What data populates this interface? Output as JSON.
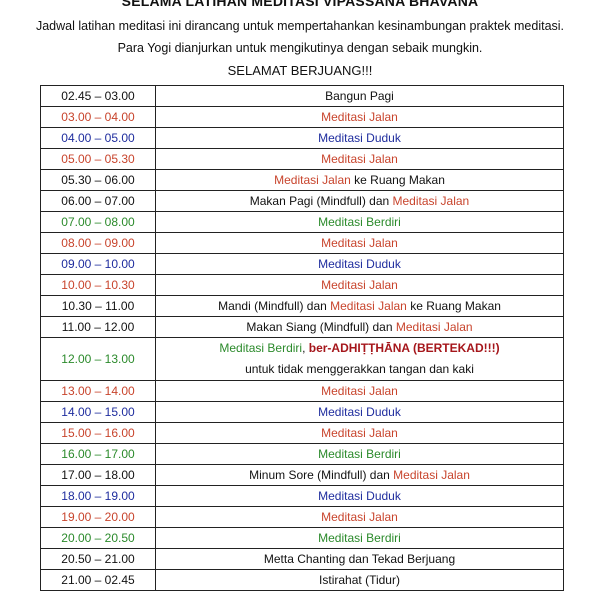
{
  "header": {
    "title": "SELAMA LATIHAN MEDITASI VIPASSANA BHAVANA",
    "intro_1": "Jadwal latihan meditasi ini dirancang untuk mempertahankan kesinambungan praktek meditasi.",
    "intro_2": "Para Yogi dianjurkan untuk mengikutinya dengan sebaik mungkin.",
    "motto": "SELAMAT BERJUANG!!!"
  },
  "colors": {
    "black": "#111111",
    "red": "#c8442c",
    "blue": "#1f2d9e",
    "green": "#2b8a2b",
    "darkred": "#a5161b"
  },
  "schedule": [
    {
      "time": "02.45 – 03.00",
      "time_color": "black",
      "lines": [
        [
          {
            "text": "Bangun Pagi",
            "color": "black"
          }
        ]
      ]
    },
    {
      "time": "03.00 – 04.00",
      "time_color": "red",
      "lines": [
        [
          {
            "text": "Meditasi Jalan",
            "color": "red"
          }
        ]
      ]
    },
    {
      "time": "04.00 – 05.00",
      "time_color": "blue",
      "lines": [
        [
          {
            "text": "Meditasi Duduk",
            "color": "blue"
          }
        ]
      ]
    },
    {
      "time": "05.00 – 05.30",
      "time_color": "red",
      "lines": [
        [
          {
            "text": "Meditasi Jalan",
            "color": "red"
          }
        ]
      ]
    },
    {
      "time": "05.30 – 06.00",
      "time_color": "black",
      "lines": [
        [
          {
            "text": "Meditasi Jalan",
            "color": "red"
          },
          {
            "text": " ke Ruang Makan",
            "color": "black"
          }
        ]
      ]
    },
    {
      "time": "06.00 – 07.00",
      "time_color": "black",
      "lines": [
        [
          {
            "text": "Makan Pagi (Mindfull) dan ",
            "color": "black"
          },
          {
            "text": "Meditasi Jalan",
            "color": "red"
          }
        ]
      ]
    },
    {
      "time": "07.00 – 08.00",
      "time_color": "green",
      "lines": [
        [
          {
            "text": "Meditasi Berdiri",
            "color": "green"
          }
        ]
      ]
    },
    {
      "time": "08.00 – 09.00",
      "time_color": "red",
      "lines": [
        [
          {
            "text": "Meditasi Jalan",
            "color": "red"
          }
        ]
      ]
    },
    {
      "time": "09.00 – 10.00",
      "time_color": "blue",
      "lines": [
        [
          {
            "text": "Meditasi Duduk",
            "color": "blue"
          }
        ]
      ]
    },
    {
      "time": "10.00 – 10.30",
      "time_color": "red",
      "lines": [
        [
          {
            "text": "Meditasi Jalan",
            "color": "red"
          }
        ]
      ]
    },
    {
      "time": "10.30 – 11.00",
      "time_color": "black",
      "lines": [
        [
          {
            "text": "Mandi (Mindfull) dan ",
            "color": "black"
          },
          {
            "text": "Meditasi Jalan",
            "color": "red"
          },
          {
            "text": " ke Ruang Makan",
            "color": "black"
          }
        ]
      ]
    },
    {
      "time": "11.00 – 12.00",
      "time_color": "black",
      "lines": [
        [
          {
            "text": "Makan Siang (Mindfull) dan ",
            "color": "black"
          },
          {
            "text": "Meditasi Jalan",
            "color": "red"
          }
        ]
      ]
    },
    {
      "time": "12.00 – 13.00",
      "time_color": "green",
      "lines": [
        [
          {
            "text": "Meditasi Berdiri",
            "color": "green"
          },
          {
            "text": ", ",
            "color": "black"
          },
          {
            "text": "ber-ADHIṬṬHĀNA (BERTEKAD!!!)",
            "color": "darkred",
            "bold": true
          }
        ],
        [
          {
            "text": "untuk tidak menggerakkan tangan dan kaki",
            "color": "black"
          }
        ]
      ]
    },
    {
      "time": "13.00 – 14.00",
      "time_color": "red",
      "lines": [
        [
          {
            "text": "Meditasi Jalan",
            "color": "red"
          }
        ]
      ]
    },
    {
      "time": "14.00 – 15.00",
      "time_color": "blue",
      "lines": [
        [
          {
            "text": "Meditasi Duduk",
            "color": "blue"
          }
        ]
      ]
    },
    {
      "time": "15.00 – 16.00",
      "time_color": "red",
      "lines": [
        [
          {
            "text": "Meditasi Jalan",
            "color": "red"
          }
        ]
      ]
    },
    {
      "time": "16.00 – 17.00",
      "time_color": "green",
      "lines": [
        [
          {
            "text": "Meditasi Berdiri",
            "color": "green"
          }
        ]
      ]
    },
    {
      "time": "17.00 – 18.00",
      "time_color": "black",
      "lines": [
        [
          {
            "text": "Minum Sore (Mindfull) dan ",
            "color": "black"
          },
          {
            "text": "Meditasi Jalan",
            "color": "red"
          }
        ]
      ]
    },
    {
      "time": "18.00 – 19.00",
      "time_color": "blue",
      "lines": [
        [
          {
            "text": "Meditasi Duduk",
            "color": "blue"
          }
        ]
      ]
    },
    {
      "time": "19.00 – 20.00",
      "time_color": "red",
      "lines": [
        [
          {
            "text": "Meditasi Jalan",
            "color": "red"
          }
        ]
      ]
    },
    {
      "time": "20.00 – 20.50",
      "time_color": "green",
      "lines": [
        [
          {
            "text": "Meditasi Berdiri",
            "color": "green"
          }
        ]
      ]
    },
    {
      "time": "20.50 – 21.00",
      "time_color": "black",
      "lines": [
        [
          {
            "text": "Metta Chanting dan Tekad Berjuang",
            "color": "black"
          }
        ]
      ]
    },
    {
      "time": "21.00 – 02.45",
      "time_color": "black",
      "lines": [
        [
          {
            "text": "Istirahat (Tidur)",
            "color": "black"
          }
        ]
      ]
    }
  ]
}
